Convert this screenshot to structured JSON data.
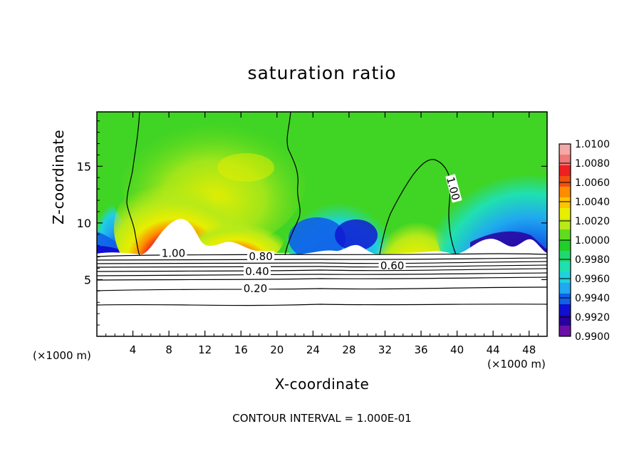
{
  "chart_data": {
    "type": "heatmap",
    "title": "saturation ratio",
    "xlabel": "X-coordinate",
    "ylabel": "Z-coordinate",
    "x_units": "(×1000 m)",
    "y_units": "(×1000 m)",
    "footnote": "CONTOUR INTERVAL = 1.000E-01",
    "xlim": [
      0,
      50
    ],
    "ylim": [
      0,
      19.8
    ],
    "x_ticks": [
      4,
      8,
      12,
      16,
      20,
      24,
      28,
      32,
      36,
      40,
      44,
      48
    ],
    "y_ticks": [
      5,
      10,
      15
    ],
    "colorbar": {
      "min": 0.99,
      "max": 1.01,
      "labels": [
        "1.0100",
        "1.0080",
        "1.0060",
        "1.0040",
        "1.0020",
        "1.0000",
        "0.9980",
        "0.9960",
        "0.9940",
        "0.9920",
        "0.9900"
      ],
      "colors": [
        "#f4a8a8",
        "#ef7878",
        "#ee2020",
        "#f05010",
        "#ff8c00",
        "#ffc400",
        "#e8ee00",
        "#b8ea18",
        "#60dc20",
        "#20d028",
        "#20d870",
        "#20e0b0",
        "#20d0e0",
        "#20a8f0",
        "#1060e8",
        "#1010d0",
        "#2a00a0",
        "#6a10a8"
      ]
    },
    "contour_labels": [
      {
        "text": "1.00",
        "x": 8.5,
        "z": 7.2
      },
      {
        "text": "0.80",
        "x": 18.2,
        "z": 6.9
      },
      {
        "text": "0.60",
        "x": 32.8,
        "z": 6.1
      },
      {
        "text": "0.40",
        "x": 17.8,
        "z": 5.6
      },
      {
        "text": "0.20",
        "x": 17.6,
        "z": 4.1
      },
      {
        "text": "1.00",
        "x": 39.4,
        "z": 13.0
      }
    ]
  }
}
